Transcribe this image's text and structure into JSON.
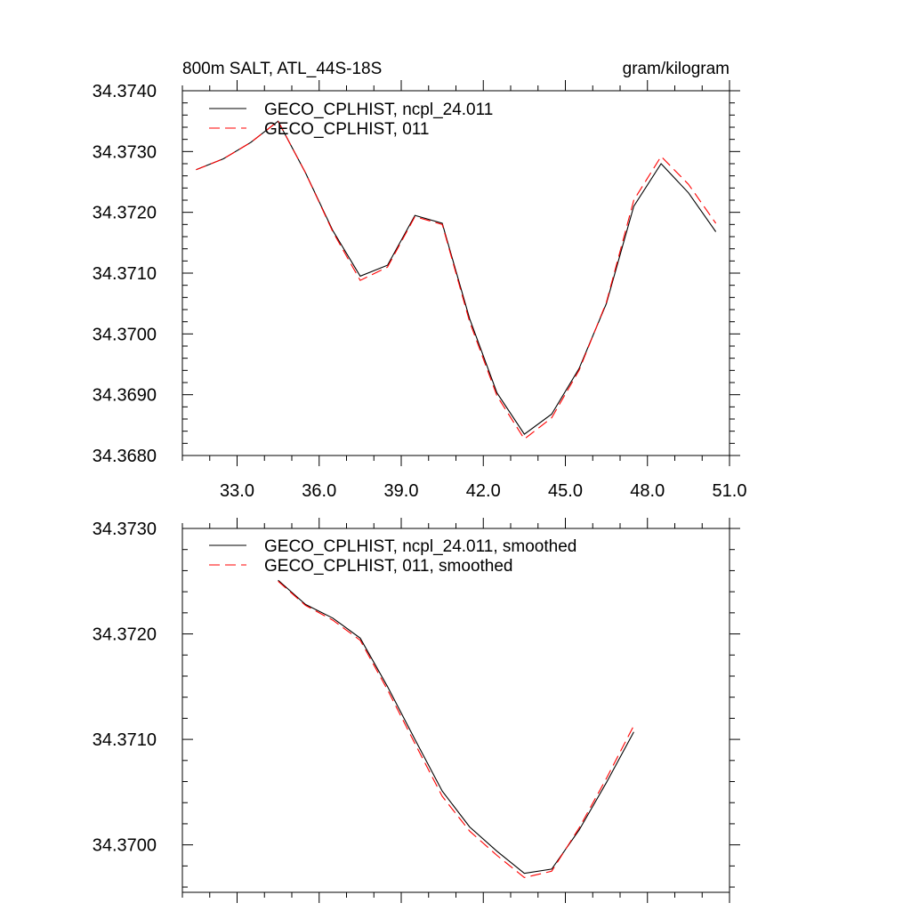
{
  "colors": {
    "series1": "#000000",
    "series2": "#ff0000",
    "axis": "#000000"
  },
  "chart_data": [
    {
      "type": "line",
      "title": "800m SALT, ATL_44S-18S",
      "units": "gram/kilogram",
      "xlim": [
        31.0,
        51.0
      ],
      "ylim": [
        34.368,
        34.374
      ],
      "xticks": [
        33.0,
        36.0,
        39.0,
        42.0,
        45.0,
        48.0,
        51.0
      ],
      "xtick_labels": [
        "33.0",
        "36.0",
        "39.0",
        "42.0",
        "45.0",
        "48.0",
        "51.0"
      ],
      "yticks": [
        34.368,
        34.369,
        34.37,
        34.371,
        34.372,
        34.373,
        34.374
      ],
      "ytick_labels": [
        "34.3680",
        "34.3690",
        "34.3700",
        "34.3710",
        "34.3720",
        "34.3730",
        "34.3740"
      ],
      "legend": "top-left",
      "series": [
        {
          "name": "GECO_CPLHIST, ncpl_24.011",
          "style": "solid",
          "x": [
            31.5,
            32.5,
            33.5,
            34.5,
            35.5,
            36.5,
            37.5,
            38.5,
            39.5,
            40.5,
            41.5,
            42.5,
            43.5,
            44.5,
            45.5,
            46.5,
            47.5,
            48.5,
            49.5,
            50.5
          ],
          "y": [
            34.3727,
            34.37288,
            34.37315,
            34.3735,
            34.37265,
            34.3717,
            34.37095,
            34.37113,
            34.37195,
            34.37182,
            34.37025,
            34.36903,
            34.36835,
            34.36868,
            34.36943,
            34.3705,
            34.3721,
            34.3728,
            34.37232,
            34.37168
          ]
        },
        {
          "name": "GECO_CPLHIST, 011",
          "style": "dashed",
          "x": [
            31.5,
            32.5,
            33.5,
            34.5,
            35.5,
            36.5,
            37.5,
            38.5,
            39.5,
            40.5,
            41.5,
            42.5,
            43.5,
            44.5,
            45.5,
            46.5,
            47.5,
            48.5,
            49.5,
            50.5
          ],
          "y": [
            34.3727,
            34.37288,
            34.37315,
            34.3735,
            34.37265,
            34.37168,
            34.37088,
            34.3711,
            34.37193,
            34.3718,
            34.3702,
            34.36898,
            34.36827,
            34.36862,
            34.3694,
            34.37052,
            34.3722,
            34.37292,
            34.37246,
            34.37182
          ]
        }
      ]
    },
    {
      "type": "line",
      "xlim": [
        31.0,
        51.0
      ],
      "ylim": [
        34.36955,
        34.373
      ],
      "xticks": [
        33.0,
        36.0,
        39.0,
        42.0,
        45.0,
        48.0,
        51.0
      ],
      "yticks": [
        34.37,
        34.371,
        34.372,
        34.373
      ],
      "ytick_labels": [
        "34.3700",
        "34.3710",
        "34.3720",
        "34.3730"
      ],
      "legend": "top-left",
      "series": [
        {
          "name": "GECO_CPLHIST, ncpl_24.011, smoothed",
          "style": "solid",
          "x": [
            34.5,
            35.5,
            36.5,
            37.5,
            38.5,
            39.5,
            40.5,
            41.5,
            42.5,
            43.5,
            44.5,
            45.5,
            46.5,
            47.5
          ],
          "y": [
            34.37251,
            34.37228,
            34.37215,
            34.37196,
            34.3715,
            34.371,
            34.37051,
            34.37017,
            34.36994,
            34.36973,
            34.36977,
            34.37014,
            34.37059,
            34.37107
          ]
        },
        {
          "name": "GECO_CPLHIST, 011, smoothed",
          "style": "dashed",
          "x": [
            34.5,
            35.5,
            36.5,
            37.5,
            38.5,
            39.5,
            40.5,
            41.5,
            42.5,
            43.5,
            44.5,
            45.5,
            46.5,
            47.5
          ],
          "y": [
            34.3725,
            34.37227,
            34.37213,
            34.37194,
            34.37147,
            34.37096,
            34.37046,
            34.37013,
            34.3699,
            34.36969,
            34.36975,
            34.37016,
            34.37063,
            34.37113
          ]
        }
      ]
    }
  ]
}
